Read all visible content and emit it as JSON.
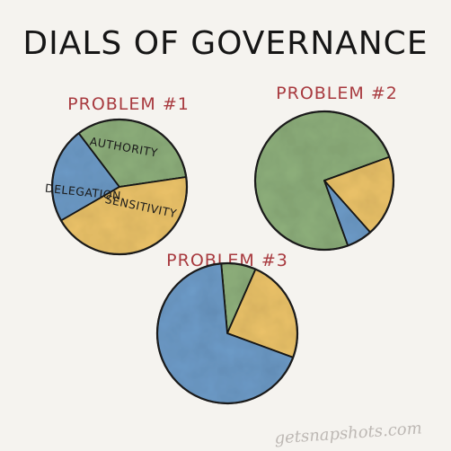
{
  "title": "DIALS OF GOVERNANCE",
  "watermark": "getsnapshots.com",
  "chart_data": [
    {
      "type": "pie",
      "title": "PROBLEM #1",
      "slices": [
        {
          "label": "AUTHORITY",
          "value": 33,
          "color": "#8fb07d"
        },
        {
          "label": "SENSITIVITY",
          "value": 44,
          "color": "#edc46a"
        },
        {
          "label": "DELEGATION",
          "value": 23,
          "color": "#6e9cc9"
        }
      ]
    },
    {
      "type": "pie",
      "title": "PROBLEM #2",
      "slices": [
        {
          "label": "",
          "value": 75,
          "color": "#8fb07d"
        },
        {
          "label": "",
          "value": 19,
          "color": "#edc46a"
        },
        {
          "label": "",
          "value": 6,
          "color": "#6e9cc9"
        }
      ]
    },
    {
      "type": "pie",
      "title": "PROBLEM #3",
      "slices": [
        {
          "label": "",
          "value": 8,
          "color": "#8fb07d"
        },
        {
          "label": "",
          "value": 24,
          "color": "#edc46a"
        },
        {
          "label": "",
          "value": 68,
          "color": "#6e9cc9"
        }
      ]
    }
  ]
}
